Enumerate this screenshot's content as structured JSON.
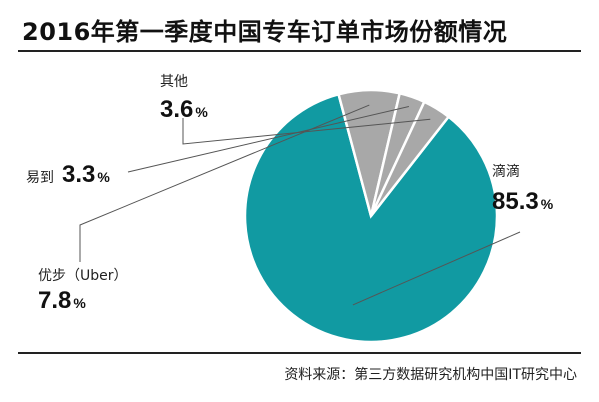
{
  "title": "2016年第一季度中国专车订单市场份额情况",
  "source": "资料来源：第三方数据研究机构中国IT研究中心",
  "chart_data": {
    "type": "pie",
    "title": "2016年第一季度中国专车订单市场份额情况",
    "unit": "%",
    "slices": [
      {
        "name": "滴滴",
        "value": 85.3,
        "color": "#119aa2"
      },
      {
        "name": "优步（Uber）",
        "value": 7.8,
        "color": "#a8a8a8"
      },
      {
        "name": "易到",
        "value": 3.3,
        "color": "#a8a8a8"
      },
      {
        "name": "其他",
        "value": 3.6,
        "color": "#a8a8a8"
      }
    ]
  }
}
